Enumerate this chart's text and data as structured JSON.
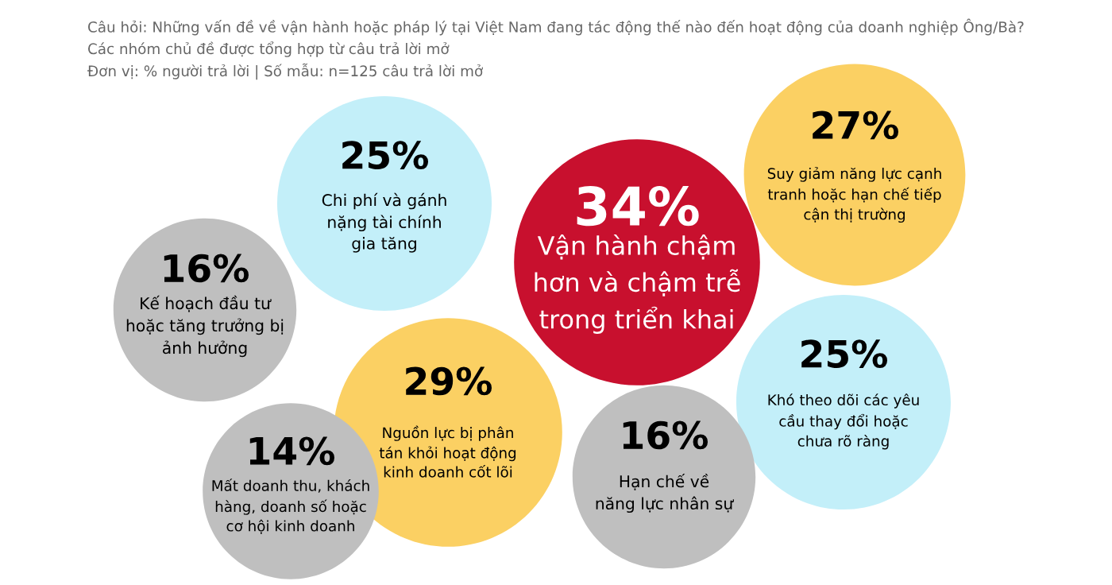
{
  "chart_data": {
    "type": "other",
    "title": "Câu hỏi: Những vấn đề về vận hành hoặc pháp lý tại Việt Nam đang tác động thế nào đến hoạt động của doanh nghiệp Ông/Bà?",
    "subtitle": "Các nhóm chủ đề được tổng hợp từ câu trả lời mở",
    "annotations": [
      "Đơn vị: % người trả lời | Số mẫu: n=125 câu trả lời mở"
    ],
    "categories": [
      "Suy giảm năng lực cạnh\ntranh hoặc hạn chế tiếp\ncận thị trường",
      "Chi phí và gánh\nnặng tài chính\ngia tăng",
      "Vận hành chậm\nhơn và chậm trễ\ntrong triển khai",
      "Kế hoạch đầu tư\nhoặc tăng trưởng bị\nảnh hưởng",
      "Khó theo dõi các yêu\ncầu thay đổi hoặc\nchưa rõ ràng",
      "Nguồn lực bị phân\ntán khỏi hoạt động\nkinh doanh cốt lõi",
      "Hạn chế về\nnăng lực nhân sự",
      "Mất doanh thu, khách\nhàng, doanh số hoặc\ncơ hội kinh doanh"
    ],
    "values": [
      27,
      25,
      34,
      16,
      25,
      29,
      16,
      14
    ],
    "value_labels": [
      "27%",
      "25%",
      "34%",
      "16%",
      "25%",
      "29%",
      "16%",
      "14%"
    ],
    "colors": [
      "#fbd063",
      "#c3eff9",
      "#c8102e",
      "#bfbfbf",
      "#c3eff9",
      "#fbd063",
      "#bfbfbf",
      "#bfbfbf"
    ]
  }
}
